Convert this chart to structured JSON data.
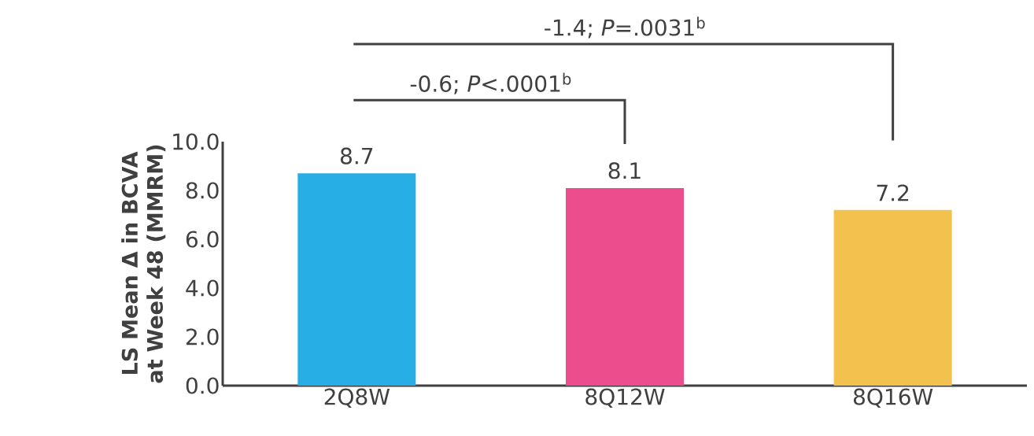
{
  "chart_data": {
    "type": "bar",
    "ylabel": "LS Mean Δ in BCVA at Week 48 (MMRM)",
    "categories": [
      "2Q8W",
      "8Q12W",
      "8Q16W"
    ],
    "values": [
      8.7,
      8.1,
      7.2
    ],
    "colors": [
      "#27aee4",
      "#ec4d8c",
      "#f2c14e"
    ],
    "ylim": [
      0,
      10
    ],
    "yticks": [
      {
        "value": 0,
        "label": "0.0"
      },
      {
        "value": 2,
        "label": "2.0"
      },
      {
        "value": 4,
        "label": "4.0"
      },
      {
        "value": 6,
        "label": "6.0"
      },
      {
        "value": 8,
        "label": "8.0"
      },
      {
        "value": 10,
        "label": "10.0"
      }
    ],
    "data_labels": true,
    "grid": false,
    "annotations": [
      "-0.6; *P*<.0001$^{b}$",
      "-1.4; *P*=.0031$^{b}$"
    ]
  }
}
